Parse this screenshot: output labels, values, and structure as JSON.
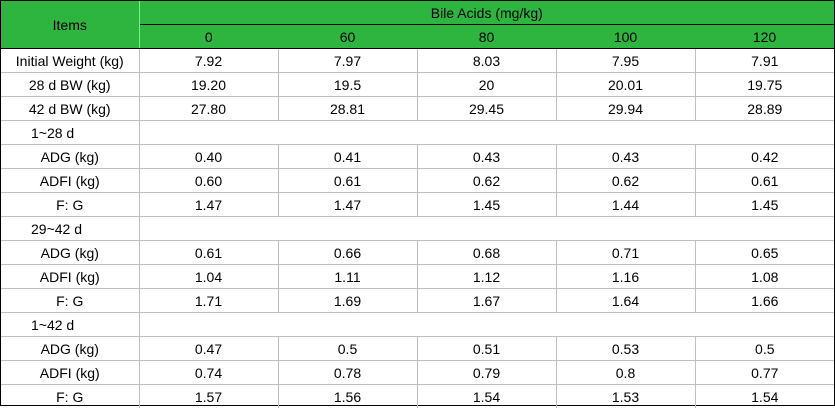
{
  "table": {
    "items_header": "Items",
    "group_header": "Bile Acids (mg/kg)",
    "doses": [
      "0",
      "60",
      "80",
      "100",
      "120"
    ],
    "rows": [
      {
        "kind": "data",
        "label": "Initial Weight (kg)",
        "values": [
          "7.92",
          "7.97",
          "8.03",
          "7.95",
          "7.91"
        ]
      },
      {
        "kind": "data",
        "label": "28 d BW (kg)",
        "values": [
          "19.20",
          "19.5",
          "20",
          "20.01",
          "19.75"
        ]
      },
      {
        "kind": "data",
        "label": "42 d BW (kg)",
        "values": [
          "27.80",
          "28.81",
          "29.45",
          "29.94",
          "28.89"
        ]
      },
      {
        "kind": "period",
        "label": "1~28 d"
      },
      {
        "kind": "data",
        "label": "ADG (kg)",
        "values": [
          "0.40",
          "0.41",
          "0.43",
          "0.43",
          "0.42"
        ]
      },
      {
        "kind": "data",
        "label": "ADFI (kg)",
        "values": [
          "0.60",
          "0.61",
          "0.62",
          "0.62",
          "0.61"
        ]
      },
      {
        "kind": "data",
        "label": "F: G",
        "values": [
          "1.47",
          "1.47",
          "1.45",
          "1.44",
          "1.45"
        ]
      },
      {
        "kind": "period",
        "label": "29~42 d"
      },
      {
        "kind": "data",
        "label": "ADG (kg)",
        "values": [
          "0.61",
          "0.66",
          "0.68",
          "0.71",
          "0.65"
        ]
      },
      {
        "kind": "data",
        "label": "ADFI (kg)",
        "values": [
          "1.04",
          "1.11",
          "1.12",
          "1.16",
          "1.08"
        ]
      },
      {
        "kind": "data",
        "label": "F: G",
        "values": [
          "1.71",
          "1.69",
          "1.67",
          "1.64",
          "1.66"
        ]
      },
      {
        "kind": "period",
        "label": "1~42 d"
      },
      {
        "kind": "data",
        "label": "ADG (kg)",
        "values": [
          "0.47",
          "0.5",
          "0.51",
          "0.53",
          "0.5"
        ]
      },
      {
        "kind": "data",
        "label": "ADFI (kg)",
        "values": [
          "0.74",
          "0.78",
          "0.79",
          "0.8",
          "0.77"
        ]
      },
      {
        "kind": "data",
        "label": "F: G",
        "values": [
          "1.57",
          "1.56",
          "1.54",
          "1.53",
          "1.54"
        ]
      }
    ]
  },
  "colors": {
    "header_background": "#2db53f",
    "grid_line": "#bfbfbf",
    "border": "#000000"
  }
}
